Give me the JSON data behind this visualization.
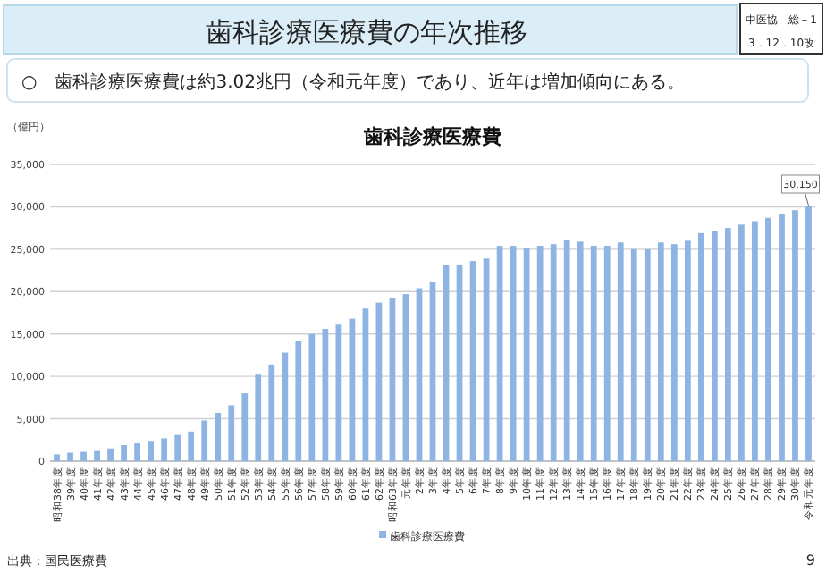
{
  "chart_data": {
    "type": "bar",
    "title": "歯科診療医療費",
    "ylabel": "（億円）",
    "categories": [
      "昭和38年度",
      "39年度",
      "40年度",
      "41年度",
      "42年度",
      "43年度",
      "44年度",
      "45年度",
      "46年度",
      "47年度",
      "48年度",
      "49年度",
      "50年度",
      "51年度",
      "52年度",
      "53年度",
      "54年度",
      "55年度",
      "56年度",
      "57年度",
      "58年度",
      "59年度",
      "60年度",
      "61年度",
      "62年度",
      "昭和63年度",
      "元年度",
      "2年度",
      "3年度",
      "4年度",
      "5年度",
      "6年度",
      "7年度",
      "8年度",
      "9年度",
      "10年度",
      "11年度",
      "12年度",
      "13年度",
      "14年度",
      "15年度",
      "16年度",
      "17年度",
      "18年度",
      "19年度",
      "20年度",
      "21年度",
      "22年度",
      "23年度",
      "24年度",
      "25年度",
      "26年度",
      "27年度",
      "28年度",
      "29年度",
      "30年度",
      "令和元年度"
    ],
    "series": [
      {
        "name": "歯科診療医療費",
        "color": "#8db4e2",
        "values": [
          800,
          1000,
          1100,
          1200,
          1500,
          1900,
          2100,
          2400,
          2700,
          3100,
          3500,
          4800,
          5700,
          6600,
          8000,
          10200,
          11400,
          12800,
          14200,
          15000,
          15600,
          16100,
          16800,
          18000,
          18700,
          19300,
          19700,
          20400,
          21200,
          23100,
          23200,
          23600,
          23900,
          25400,
          25400,
          25200,
          25400,
          25600,
          26100,
          25900,
          25400,
          25400,
          25800,
          25000,
          25000,
          25800,
          25600,
          26000,
          26900,
          27200,
          27500,
          27900,
          28300,
          28700,
          29100,
          29600,
          30150
        ],
        "value_labels": [
          null,
          null,
          null,
          null,
          null,
          null,
          null,
          null,
          null,
          null,
          null,
          null,
          null,
          null,
          null,
          null,
          null,
          null,
          null,
          null,
          null,
          null,
          null,
          null,
          null,
          null,
          null,
          null,
          null,
          null,
          null,
          null,
          null,
          null,
          null,
          null,
          null,
          null,
          null,
          null,
          null,
          null,
          null,
          null,
          null,
          null,
          null,
          null,
          null,
          null,
          null,
          null,
          null,
          null,
          null,
          null,
          "30,150"
        ]
      }
    ],
    "ylim": [
      0,
      35000
    ],
    "yticks": [
      0,
      {
        "value": 5000,
        "label": "5,000"
      },
      {
        "value": 10000,
        "label": "10,000"
      },
      {
        "value": 15000,
        "label": "15,000"
      },
      {
        "value": 20000,
        "label": "20,000"
      },
      {
        "value": 25000,
        "label": "25,000"
      },
      {
        "value": 30000,
        "label": "30,000"
      },
      {
        "value": 35000,
        "label": "35,000"
      }
    ],
    "grid": "y",
    "legend": "bottom",
    "annotations": [
      "歯科診療医療費の年次推移",
      "中医協　総－1",
      "3．12．10改",
      "○　歯科診療医療費は約3.02兆円（令和元年度）であり、近年は増加傾向にある。",
      "出典：国民医療費",
      "9"
    ]
  }
}
